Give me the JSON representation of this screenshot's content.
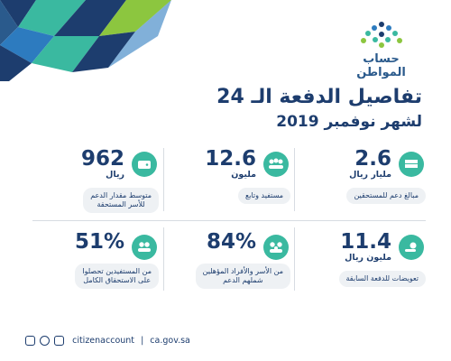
{
  "header": {
    "brand": "حساب المواطن",
    "title_line1": "تفاصيل الدفعة الـ 24",
    "title_line2": "لشهر نوفمبر 2019"
  },
  "stats": [
    {
      "value": "2.6",
      "unit": "مليار ريال",
      "label": "مبالغ دعم للمستحقين",
      "icon": "money-stack-icon"
    },
    {
      "value": "12.6",
      "unit": "مليون",
      "label": "مستفيد وتابع",
      "icon": "people-group-icon"
    },
    {
      "value": "962",
      "unit": "ريال",
      "label": "متوسط مقدار الدعم\nللأسر المستحقة",
      "icon": "wallet-icon"
    },
    {
      "value": "11.4",
      "unit": "مليون ريال",
      "label": "تعويضات للدفعة السابقة",
      "icon": "coin-hand-icon"
    },
    {
      "value": "84%",
      "unit": "",
      "label": "من الأسر والأفراد المؤهلين\nشملهم الدعم",
      "icon": "family-icon"
    },
    {
      "value": "51%",
      "unit": "",
      "label": "من المستفيدين تحصلوا\nعلى الاستحقاق الكامل",
      "icon": "two-people-icon"
    }
  ],
  "footer": {
    "handle": "citizenaccount",
    "divider": "|",
    "website": "ca.gov.sa"
  },
  "colors": {
    "navy": "#1d3d6e",
    "teal": "#3ab9a0",
    "green": "#8cc63f",
    "blue": "#2d7bbf",
    "pill_bg": "#eef1f4"
  }
}
